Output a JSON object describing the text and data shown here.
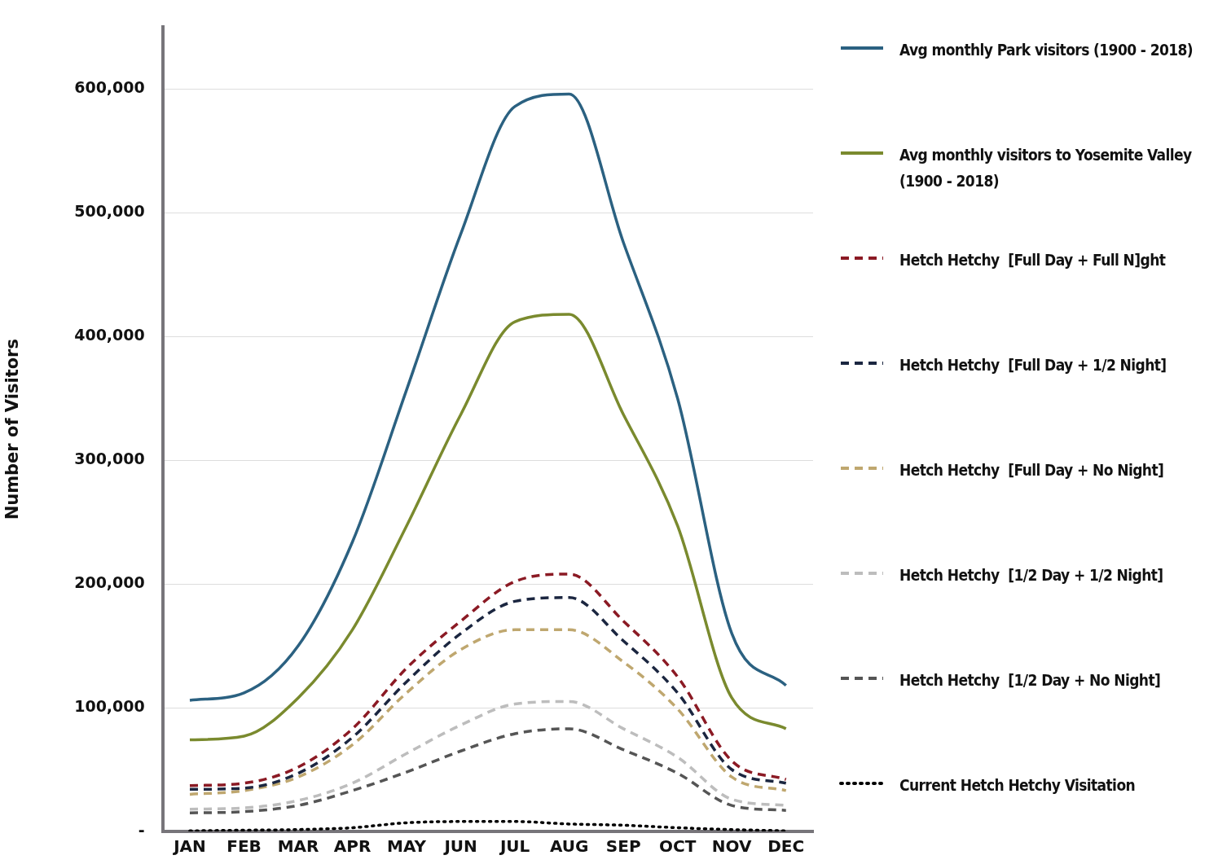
{
  "chart_data": {
    "type": "line",
    "ylabel": "Number of Visitors",
    "categories": [
      "JAN",
      "FEB",
      "MAR",
      "APR",
      "MAY",
      "JUN",
      "JUL",
      "AUG",
      "SEP",
      "OCT",
      "NOV",
      "DEC"
    ],
    "ylim": [
      0,
      650000
    ],
    "yticks": [
      {
        "value": 0,
        "label": "-"
      },
      {
        "value": 100000,
        "label": "100,000"
      },
      {
        "value": 200000,
        "label": "200,000"
      },
      {
        "value": 300000,
        "label": "300,000"
      },
      {
        "value": 400000,
        "label": "400,000"
      },
      {
        "value": 500000,
        "label": "500,000"
      },
      {
        "value": 600000,
        "label": "600,000"
      }
    ],
    "grid": "y",
    "legend": "right",
    "marker": "none",
    "series": [
      {
        "name": "Avg monthly Park visitors (1900 - 2018)",
        "color": "#2b6181",
        "line_style": "solid",
        "values": [
          106000,
          112000,
          150000,
          234000,
          357000,
          483000,
          586000,
          596000,
          476000,
          350000,
          160000,
          118000
        ]
      },
      {
        "name": "Avg monthly visitors to Yosemite Valley (1900 - 2018)",
        "color": "#7a8a2e",
        "line_style": "solid",
        "values": [
          74000,
          77000,
          108000,
          163000,
          247000,
          337000,
          412000,
          418000,
          337000,
          247000,
          108000,
          83000
        ]
      },
      {
        "name": "Hetch Hetchy  [Full Day + Full N]ght",
        "color": "#8b1a24",
        "line_style": "dashed",
        "values": [
          37000,
          39000,
          52000,
          83000,
          132000,
          170000,
          202000,
          208000,
          170000,
          125000,
          57000,
          42000
        ]
      },
      {
        "name": "Hetch Hetchy  [Full Day + 1/2 Night]",
        "color": "#1b2640",
        "line_style": "dashed",
        "values": [
          34000,
          35000,
          47000,
          76000,
          121000,
          160000,
          186000,
          189000,
          154000,
          112000,
          50000,
          39000
        ]
      },
      {
        "name": "Hetch Hetchy  [Full Day + No Night]",
        "color": "#bfa76f",
        "line_style": "dashed",
        "values": [
          30000,
          33000,
          44000,
          70000,
          112000,
          147000,
          163000,
          163000,
          137000,
          99000,
          44000,
          33000
        ]
      },
      {
        "name": "Hetch Hetchy  [1/2 Day + 1/2 Night]",
        "color": "#bdbdbd",
        "line_style": "dashed",
        "values": [
          18000,
          19000,
          25000,
          39000,
          63000,
          86000,
          103000,
          105000,
          83000,
          60000,
          26000,
          21000
        ]
      },
      {
        "name": "Hetch Hetchy  [1/2 Day + No Night]",
        "color": "#555555",
        "line_style": "dashed",
        "values": [
          15000,
          16000,
          21000,
          33000,
          48000,
          65000,
          79000,
          83000,
          66000,
          47000,
          21000,
          17000
        ]
      },
      {
        "name": "Current Hetch Hetchy Visitation",
        "color": "#000000",
        "line_style": "dotted",
        "values": [
          500,
          1000,
          1500,
          3000,
          7000,
          8000,
          8000,
          6000,
          5000,
          3000,
          1500,
          500
        ]
      }
    ]
  }
}
